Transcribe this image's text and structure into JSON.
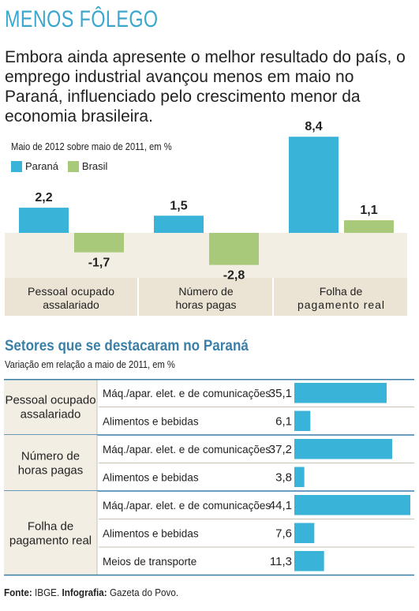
{
  "header": {
    "title": "MENOS FÔLEGO",
    "lede": "Embora ainda apresente o melhor resultado do país, o emprego industrial avançou menos em maio no Paraná, influenciado pelo crescimento menor da economia brasileira."
  },
  "colors": {
    "parana": "#3ab3d9",
    "brasil": "#a9c97a",
    "band": "#f3eee4"
  },
  "chart_data": [
    {
      "type": "bar",
      "subtitle": "Maio de 2012 sobre maio de 2011, em %",
      "categories": [
        "Pessoal ocupado assalariado",
        "Número de horas pagas",
        "Folha de pagamento real"
      ],
      "category_lines": [
        [
          "Pessoal ocupado",
          "assalariado"
        ],
        [
          "Número de",
          "horas pagas"
        ],
        [
          "Folha de",
          "pagamento real"
        ]
      ],
      "series": [
        {
          "name": "Paraná",
          "values": [
            2.2,
            1.5,
            8.4
          ],
          "labels": [
            "2,2",
            "1,5",
            "8,4"
          ]
        },
        {
          "name": "Brasil",
          "values": [
            -1.7,
            -2.8,
            1.1
          ],
          "labels": [
            "-1,7",
            "-2,8",
            "1,1"
          ]
        }
      ],
      "legend": "top-left"
    },
    {
      "type": "table",
      "title": "Setores que se destacaram no Paraná",
      "subtitle": "Variação em relação a maio de 2011, em %",
      "groups": [
        {
          "label": [
            "Pessoal ocupado",
            "assalariado"
          ],
          "rows": [
            {
              "sector": "Máq./apar. elet. e de comunicações",
              "value": 35.1,
              "label": "35,1"
            },
            {
              "sector": "Alimentos e bebidas",
              "value": 6.1,
              "label": "6,1"
            }
          ]
        },
        {
          "label": [
            "Número de",
            "horas pagas"
          ],
          "rows": [
            {
              "sector": "Máq./apar. elet. e de comunicações",
              "value": 37.2,
              "label": "37,2"
            },
            {
              "sector": "Alimentos e bebidas",
              "value": 3.8,
              "label": "3,8"
            }
          ]
        },
        {
          "label": [
            "Folha de",
            "pagamento real"
          ],
          "rows": [
            {
              "sector": "Máq./apar. elet. e de comunicações",
              "value": 44.1,
              "label": "44,1"
            },
            {
              "sector": "Alimentos e bebidas",
              "value": 7.6,
              "label": "7,6"
            },
            {
              "sector": "Meios de transporte",
              "value": 11.3,
              "label": "11,3"
            }
          ]
        }
      ]
    }
  ],
  "footer": {
    "source_label": "Fonte:",
    "source": "IBGE.",
    "infographic_label": "Infografia:",
    "infographic": "Gazeta do Povo."
  }
}
